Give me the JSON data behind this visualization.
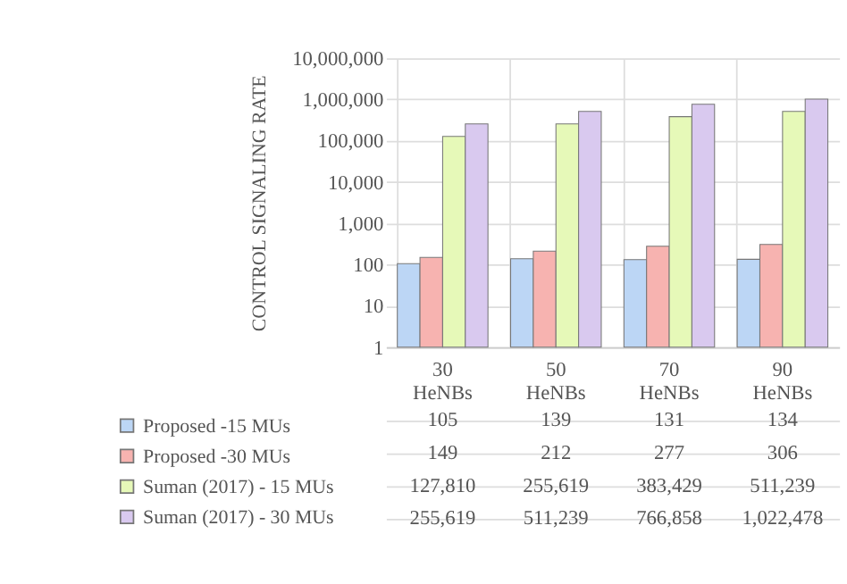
{
  "chart_data": {
    "type": "bar",
    "ylabel": "CONTROL SIGNALING RATE",
    "categories": [
      "30 HeNBs",
      "50 HeNBs",
      "70 HeNBs",
      "90 HeNBs"
    ],
    "series": [
      {
        "name": "Proposed  -15 MUs",
        "color": "#bcd6f5",
        "values": [
          105,
          139,
          131,
          134
        ],
        "value_labels": [
          "105",
          "139",
          "131",
          "134"
        ]
      },
      {
        "name": "Proposed  -30 MUs",
        "color": "#f7b3b0",
        "values": [
          149,
          212,
          277,
          306
        ],
        "value_labels": [
          "149",
          "212",
          "277",
          "306"
        ]
      },
      {
        "name": "Suman  (2017) - 15 MUs",
        "color": "#e6f9b8",
        "values": [
          127810,
          255619,
          383429,
          511239
        ],
        "value_labels": [
          "127,810",
          "255,619",
          "383,429",
          "511,239"
        ]
      },
      {
        "name": "Suman  (2017) - 30 MUs",
        "color": "#d9c9ef",
        "values": [
          255619,
          511239,
          766858,
          1022478
        ],
        "value_labels": [
          "255,619",
          "511,239",
          "766,858",
          "1,022,478"
        ]
      }
    ],
    "log": true,
    "ylim": [
      1,
      10000000
    ],
    "yticks": [
      1,
      10,
      100,
      {
        "value": 1000,
        "label": "1,000"
      },
      {
        "value": 10000,
        "label": "10,000"
      },
      {
        "value": 100000,
        "label": "100,000"
      },
      {
        "value": 1000000,
        "label": "1,000,000"
      },
      {
        "value": 10000000,
        "label": "10,000,000"
      }
    ],
    "grid": "y",
    "legend": "bottom left"
  }
}
